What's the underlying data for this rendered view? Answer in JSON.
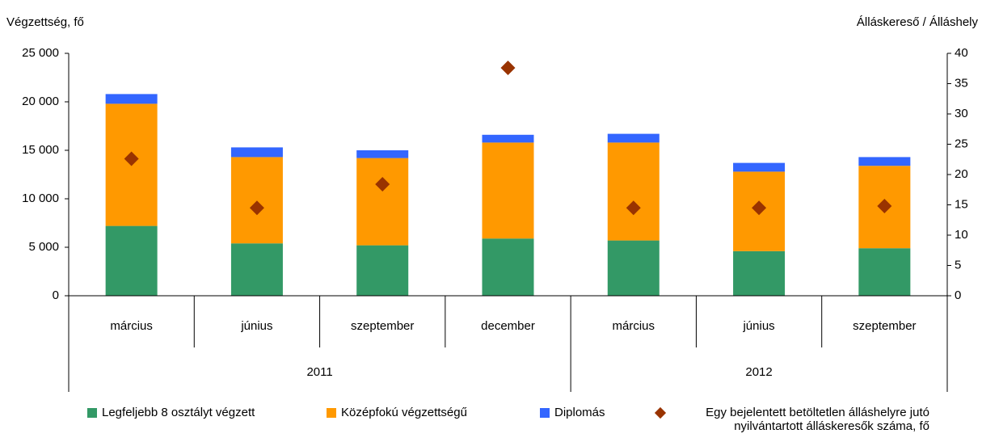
{
  "chart_data": {
    "type": "bar",
    "ylabel": "Végzettség, fő",
    "y2label": "Álláskereső / Álláshely",
    "categories": [
      "március",
      "június",
      "szeptember",
      "december",
      "március",
      "június",
      "szeptember"
    ],
    "years": [
      "2011",
      "2011",
      "2011",
      "2011",
      "2012",
      "2012",
      "2012"
    ],
    "series": [
      {
        "name": "Legfeljebb 8 osztályt végzett",
        "color": "#339966",
        "values": [
          7200,
          5400,
          5200,
          5900,
          5700,
          4600,
          4900
        ]
      },
      {
        "name": "Középfokú végzettségű",
        "color": "#ff9900",
        "values": [
          12600,
          8900,
          9000,
          9900,
          10100,
          8200,
          8500
        ]
      },
      {
        "name": "Diplomás",
        "color": "#3366ff",
        "values": [
          1000,
          1000,
          800,
          800,
          900,
          900,
          900
        ]
      },
      {
        "name": "Egy bejelentett betöltetlen álláshelyre jutó nyilvántartott álláskeresők száma, fő",
        "color": "#993300",
        "type": "scatter",
        "marker": "diamond",
        "axis": "y2",
        "values": [
          22.6,
          14.5,
          18.4,
          37.6,
          14.5,
          14.5,
          14.8
        ]
      }
    ],
    "ylim": [
      0,
      25000
    ],
    "yticks": [
      0,
      {
        "value": 5000,
        "label": "5 000"
      },
      {
        "value": 10000,
        "label": "10 000"
      },
      {
        "value": 15000,
        "label": "15 000"
      },
      {
        "value": 20000,
        "label": "20 000"
      },
      {
        "value": 25000,
        "label": "25 000"
      }
    ],
    "y2lim": [
      0,
      40
    ],
    "y2ticks": [
      0,
      5,
      10,
      15,
      20,
      25,
      30,
      35,
      40
    ],
    "grid": false,
    "legend": "bottom"
  }
}
